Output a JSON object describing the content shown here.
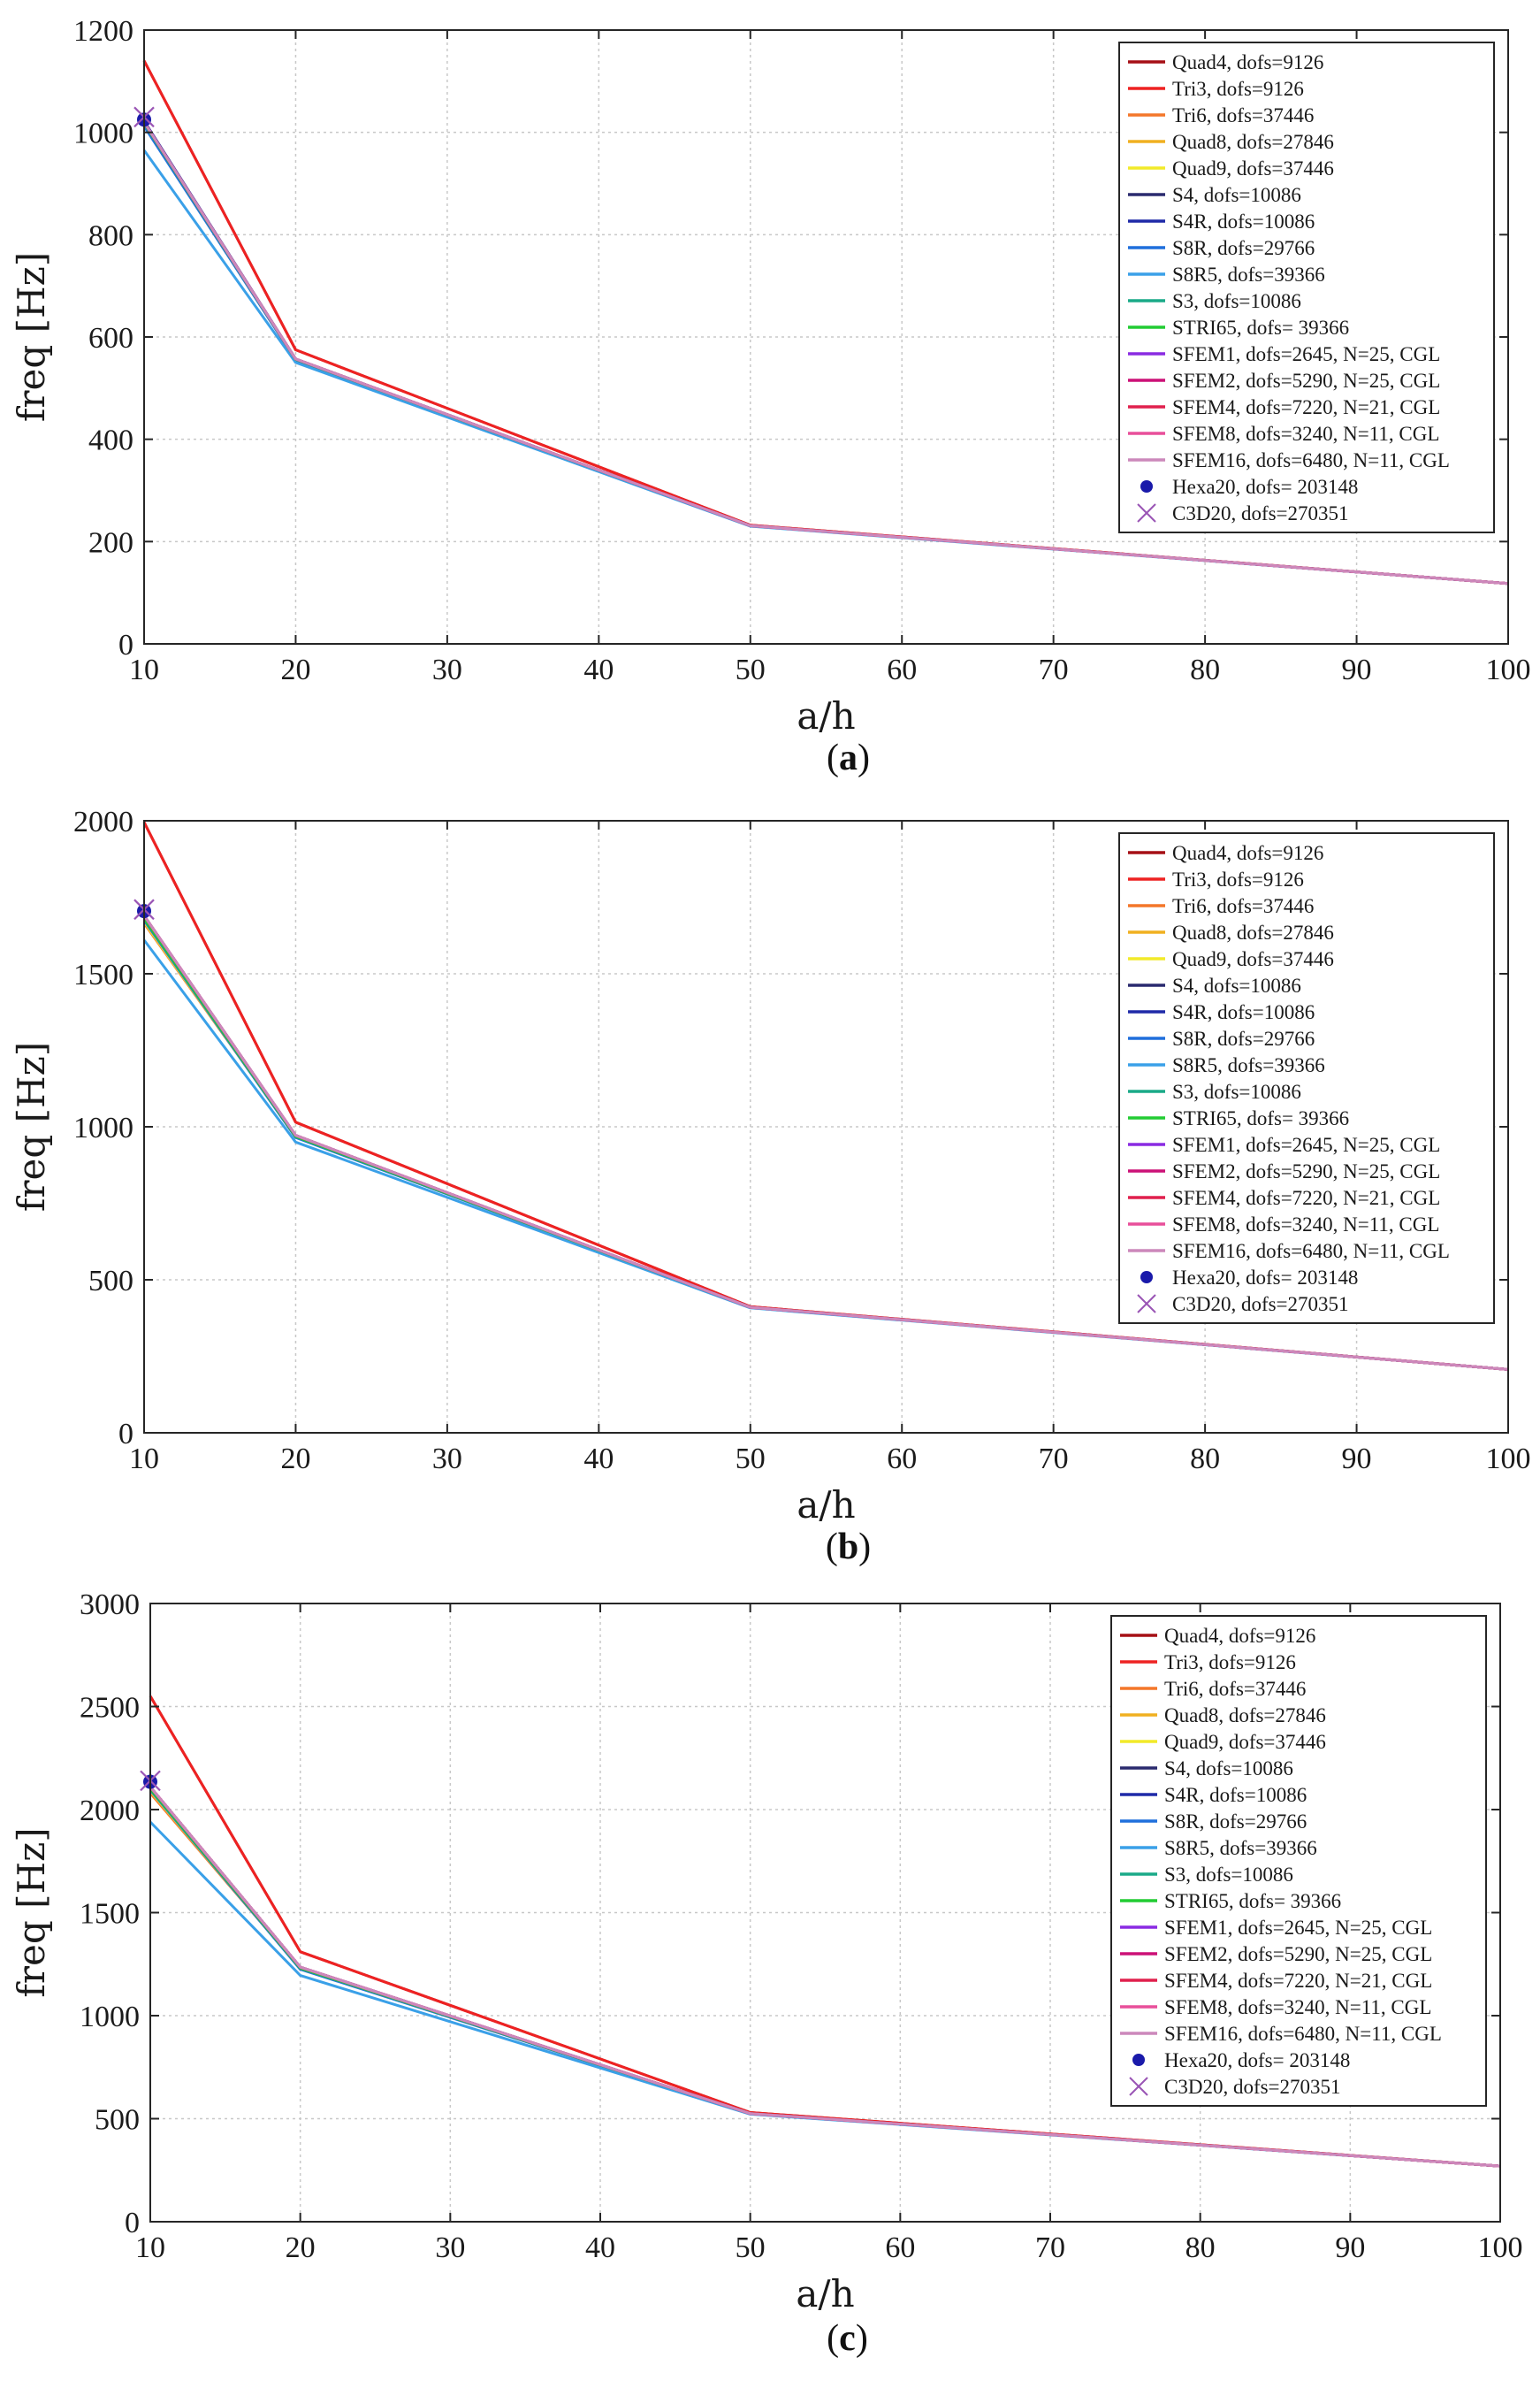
{
  "chart_data": [
    {
      "type": "line",
      "caption": "a",
      "xlabel": "a/h",
      "ylabel": "freq [Hz]",
      "xlim": [
        10,
        100
      ],
      "ylim": [
        0,
        1200
      ],
      "xticks": [
        10,
        20,
        30,
        40,
        50,
        60,
        70,
        80,
        90,
        100
      ],
      "yticks": [
        0,
        200,
        400,
        600,
        800,
        1000,
        1200
      ],
      "grid": true,
      "legend_position": "top-right",
      "x": [
        10,
        20,
        50,
        100
      ],
      "series": [
        {
          "name": "Quad4, dofs=9126",
          "color": "#a50f15",
          "values": [
            1140,
            575,
            232,
            118
          ]
        },
        {
          "name": "Tri3, dofs=9126",
          "color": "#ee2222",
          "values": [
            1140,
            575,
            232,
            118
          ]
        },
        {
          "name": "Tri6, dofs=37446",
          "color": "#f4772a",
          "values": [
            1020,
            557,
            231,
            118
          ]
        },
        {
          "name": "Quad8, dofs=27846",
          "color": "#f0b020",
          "values": [
            1018,
            556,
            231,
            118
          ]
        },
        {
          "name": "Quad9, dofs=37446",
          "color": "#f2ea2a",
          "values": [
            1018,
            556,
            231,
            118
          ]
        },
        {
          "name": "S4, dofs=10086",
          "color": "#2a2a6e",
          "values": [
            1022,
            557,
            231,
            118
          ]
        },
        {
          "name": "S4R, dofs=10086",
          "color": "#1f2aa8",
          "values": [
            1022,
            557,
            231,
            118
          ]
        },
        {
          "name": "S8R, dofs=29766",
          "color": "#1f6fdc",
          "values": [
            1012,
            555,
            231,
            118
          ]
        },
        {
          "name": "S8R5, dofs=39366",
          "color": "#3aa0e8",
          "values": [
            965,
            550,
            230,
            118
          ]
        },
        {
          "name": "S3, dofs=10086",
          "color": "#1aaa88",
          "values": [
            1020,
            557,
            231,
            118
          ]
        },
        {
          "name": "STRI65, dofs= 39366",
          "color": "#22cc33",
          "values": [
            1018,
            556,
            231,
            118
          ]
        },
        {
          "name": "SFEM1, dofs=2645, N=25, CGL",
          "color": "#8a2be2",
          "values": [
            1020,
            557,
            231,
            118
          ]
        },
        {
          "name": "SFEM2, dofs=5290, N=25, CGL",
          "color": "#cc1177",
          "values": [
            1020,
            557,
            231,
            118
          ]
        },
        {
          "name": "SFEM4, dofs=7220, N=21, CGL",
          "color": "#e0204d",
          "values": [
            1020,
            557,
            231,
            118
          ]
        },
        {
          "name": "SFEM8, dofs=3240, N=11, CGL",
          "color": "#e84f9a",
          "values": [
            1020,
            557,
            231,
            118
          ]
        },
        {
          "name": "SFEM16, dofs=6480, N=11, CGL",
          "color": "#cc88bb",
          "values": [
            1020,
            557,
            231,
            118
          ]
        }
      ],
      "markers": [
        {
          "name": "Hexa20, dofs= 203148",
          "color": "#1a1aaa",
          "symbol": "dot",
          "x": 10,
          "y": 1025
        },
        {
          "name": "C3D20, dofs=270351",
          "color": "#9a55b5",
          "symbol": "cross",
          "x": 10,
          "y": 1030
        }
      ]
    },
    {
      "type": "line",
      "caption": "b",
      "xlabel": "a/h",
      "ylabel": "freq [Hz]",
      "xlim": [
        10,
        100
      ],
      "ylim": [
        0,
        2000
      ],
      "xticks": [
        10,
        20,
        30,
        40,
        50,
        60,
        70,
        80,
        90,
        100
      ],
      "yticks": [
        0,
        500,
        1000,
        1500,
        2000
      ],
      "grid": true,
      "legend_position": "top-right",
      "x": [
        10,
        20,
        50,
        100
      ],
      "series": [
        {
          "name": "Quad4, dofs=9126",
          "color": "#a50f15",
          "values": [
            1995,
            1015,
            412,
            207
          ]
        },
        {
          "name": "Tri3, dofs=9126",
          "color": "#ee2222",
          "values": [
            1995,
            1015,
            412,
            207
          ]
        },
        {
          "name": "Tri6, dofs=37446",
          "color": "#f4772a",
          "values": [
            1665,
            970,
            410,
            207
          ]
        },
        {
          "name": "Quad8, dofs=27846",
          "color": "#f0b020",
          "values": [
            1670,
            968,
            410,
            207
          ]
        },
        {
          "name": "Quad9, dofs=37446",
          "color": "#f2ea2a",
          "values": [
            1670,
            968,
            410,
            207
          ]
        },
        {
          "name": "S4, dofs=10086",
          "color": "#2a2a6e",
          "values": [
            1690,
            972,
            410,
            207
          ]
        },
        {
          "name": "S4R, dofs=10086",
          "color": "#1f2aa8",
          "values": [
            1690,
            972,
            410,
            207
          ]
        },
        {
          "name": "S8R, dofs=29766",
          "color": "#1f6fdc",
          "values": [
            1675,
            965,
            410,
            207
          ]
        },
        {
          "name": "S8R5, dofs=39366",
          "color": "#3aa0e8",
          "values": [
            1610,
            950,
            408,
            207
          ]
        },
        {
          "name": "S3, dofs=10086",
          "color": "#1aaa88",
          "values": [
            1685,
            970,
            410,
            207
          ]
        },
        {
          "name": "STRI65, dofs= 39366",
          "color": "#22cc33",
          "values": [
            1680,
            968,
            410,
            207
          ]
        },
        {
          "name": "SFEM1, dofs=2645, N=25, CGL",
          "color": "#8a2be2",
          "values": [
            1690,
            972,
            410,
            207
          ]
        },
        {
          "name": "SFEM2, dofs=5290, N=25, CGL",
          "color": "#cc1177",
          "values": [
            1690,
            972,
            410,
            207
          ]
        },
        {
          "name": "SFEM4, dofs=7220, N=21, CGL",
          "color": "#e0204d",
          "values": [
            1690,
            972,
            410,
            207
          ]
        },
        {
          "name": "SFEM8, dofs=3240, N=11, CGL",
          "color": "#e84f9a",
          "values": [
            1690,
            972,
            410,
            207
          ]
        },
        {
          "name": "SFEM16, dofs=6480, N=11, CGL",
          "color": "#cc88bb",
          "values": [
            1690,
            972,
            410,
            207
          ]
        }
      ],
      "markers": [
        {
          "name": "Hexa20, dofs= 203148",
          "color": "#1a1aaa",
          "symbol": "dot",
          "x": 10,
          "y": 1705
        },
        {
          "name": "C3D20, dofs=270351",
          "color": "#9a55b5",
          "symbol": "cross",
          "x": 10,
          "y": 1710
        }
      ]
    },
    {
      "type": "line",
      "caption": "c",
      "xlabel": "a/h",
      "ylabel": "freq [Hz]",
      "xlim": [
        10,
        100
      ],
      "ylim": [
        0,
        3000
      ],
      "xticks": [
        10,
        20,
        30,
        40,
        50,
        60,
        70,
        80,
        90,
        100
      ],
      "yticks": [
        0,
        500,
        1000,
        1500,
        2000,
        2500,
        3000
      ],
      "grid": true,
      "legend_position": "top-right",
      "x": [
        10,
        20,
        50,
        100
      ],
      "series": [
        {
          "name": "Quad4, dofs=9126",
          "color": "#a50f15",
          "values": [
            2550,
            1310,
            530,
            270
          ]
        },
        {
          "name": "Tri3, dofs=9126",
          "color": "#ee2222",
          "values": [
            2550,
            1310,
            530,
            270
          ]
        },
        {
          "name": "Tri6, dofs=37446",
          "color": "#f4772a",
          "values": [
            2080,
            1230,
            525,
            270
          ]
        },
        {
          "name": "Quad8, dofs=27846",
          "color": "#f0b020",
          "values": [
            2090,
            1228,
            525,
            270
          ]
        },
        {
          "name": "Quad9, dofs=37446",
          "color": "#f2ea2a",
          "values": [
            2090,
            1228,
            525,
            270
          ]
        },
        {
          "name": "S4, dofs=10086",
          "color": "#2a2a6e",
          "values": [
            2110,
            1235,
            525,
            270
          ]
        },
        {
          "name": "S4R, dofs=10086",
          "color": "#1f2aa8",
          "values": [
            2110,
            1235,
            525,
            270
          ]
        },
        {
          "name": "S8R, dofs=29766",
          "color": "#1f6fdc",
          "values": [
            2095,
            1225,
            525,
            270
          ]
        },
        {
          "name": "S8R5, dofs=39366",
          "color": "#3aa0e8",
          "values": [
            1940,
            1195,
            522,
            270
          ]
        },
        {
          "name": "S3, dofs=10086",
          "color": "#1aaa88",
          "values": [
            2105,
            1232,
            525,
            270
          ]
        },
        {
          "name": "STRI65, dofs= 39366",
          "color": "#22cc33",
          "values": [
            2100,
            1230,
            525,
            270
          ]
        },
        {
          "name": "SFEM1, dofs=2645, N=25, CGL",
          "color": "#8a2be2",
          "values": [
            2110,
            1235,
            525,
            270
          ]
        },
        {
          "name": "SFEM2, dofs=5290, N=25, CGL",
          "color": "#cc1177",
          "values": [
            2110,
            1235,
            525,
            270
          ]
        },
        {
          "name": "SFEM4, dofs=7220, N=21, CGL",
          "color": "#e0204d",
          "values": [
            2110,
            1235,
            525,
            270
          ]
        },
        {
          "name": "SFEM8, dofs=3240, N=11, CGL",
          "color": "#e84f9a",
          "values": [
            2110,
            1235,
            525,
            270
          ]
        },
        {
          "name": "SFEM16, dofs=6480, N=11, CGL",
          "color": "#cc88bb",
          "values": [
            2110,
            1235,
            525,
            270
          ]
        }
      ],
      "markers": [
        {
          "name": "Hexa20, dofs= 203148",
          "color": "#1a1aaa",
          "symbol": "dot",
          "x": 10,
          "y": 2135
        },
        {
          "name": "C3D20, dofs=270351",
          "color": "#9a55b5",
          "symbol": "cross",
          "x": 10,
          "y": 2140
        }
      ]
    }
  ]
}
